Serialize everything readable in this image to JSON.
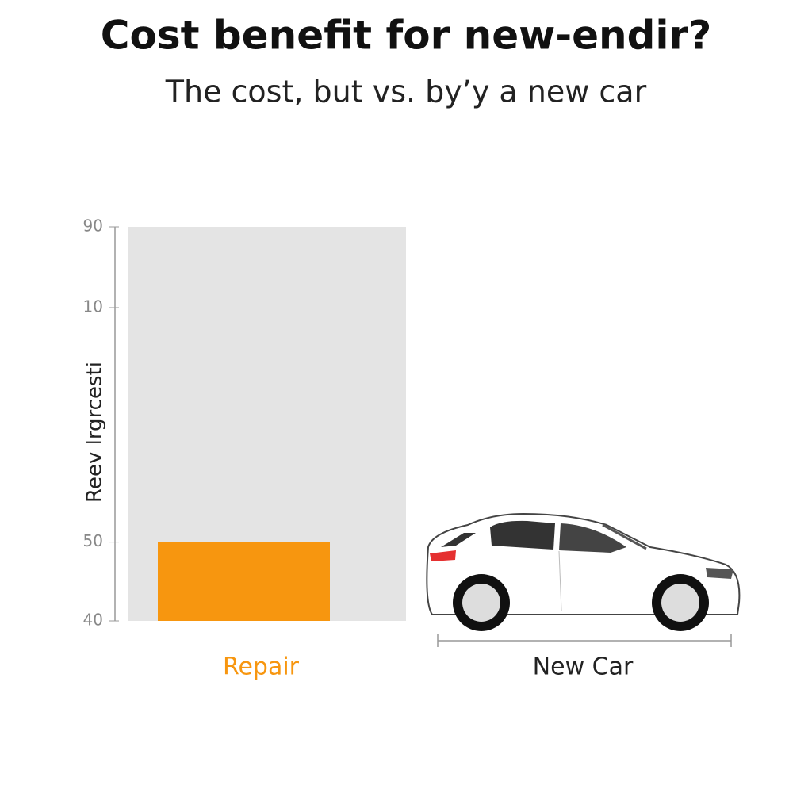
{
  "chart_data": {
    "type": "bar",
    "title": "Cost benefit for new-endir?",
    "subtitle": "The cost, but vs. by’y a new car",
    "y_axis_label": "Reev lrgrcesti",
    "categories": [
      "Repair",
      "New Car"
    ],
    "values": [
      50,
      null
    ],
    "color": "#f7960f",
    "ylim": [
      40,
      90
    ],
    "yticks": [
      40,
      50,
      90
    ],
    "stray_y_tick_label": "10"
  }
}
